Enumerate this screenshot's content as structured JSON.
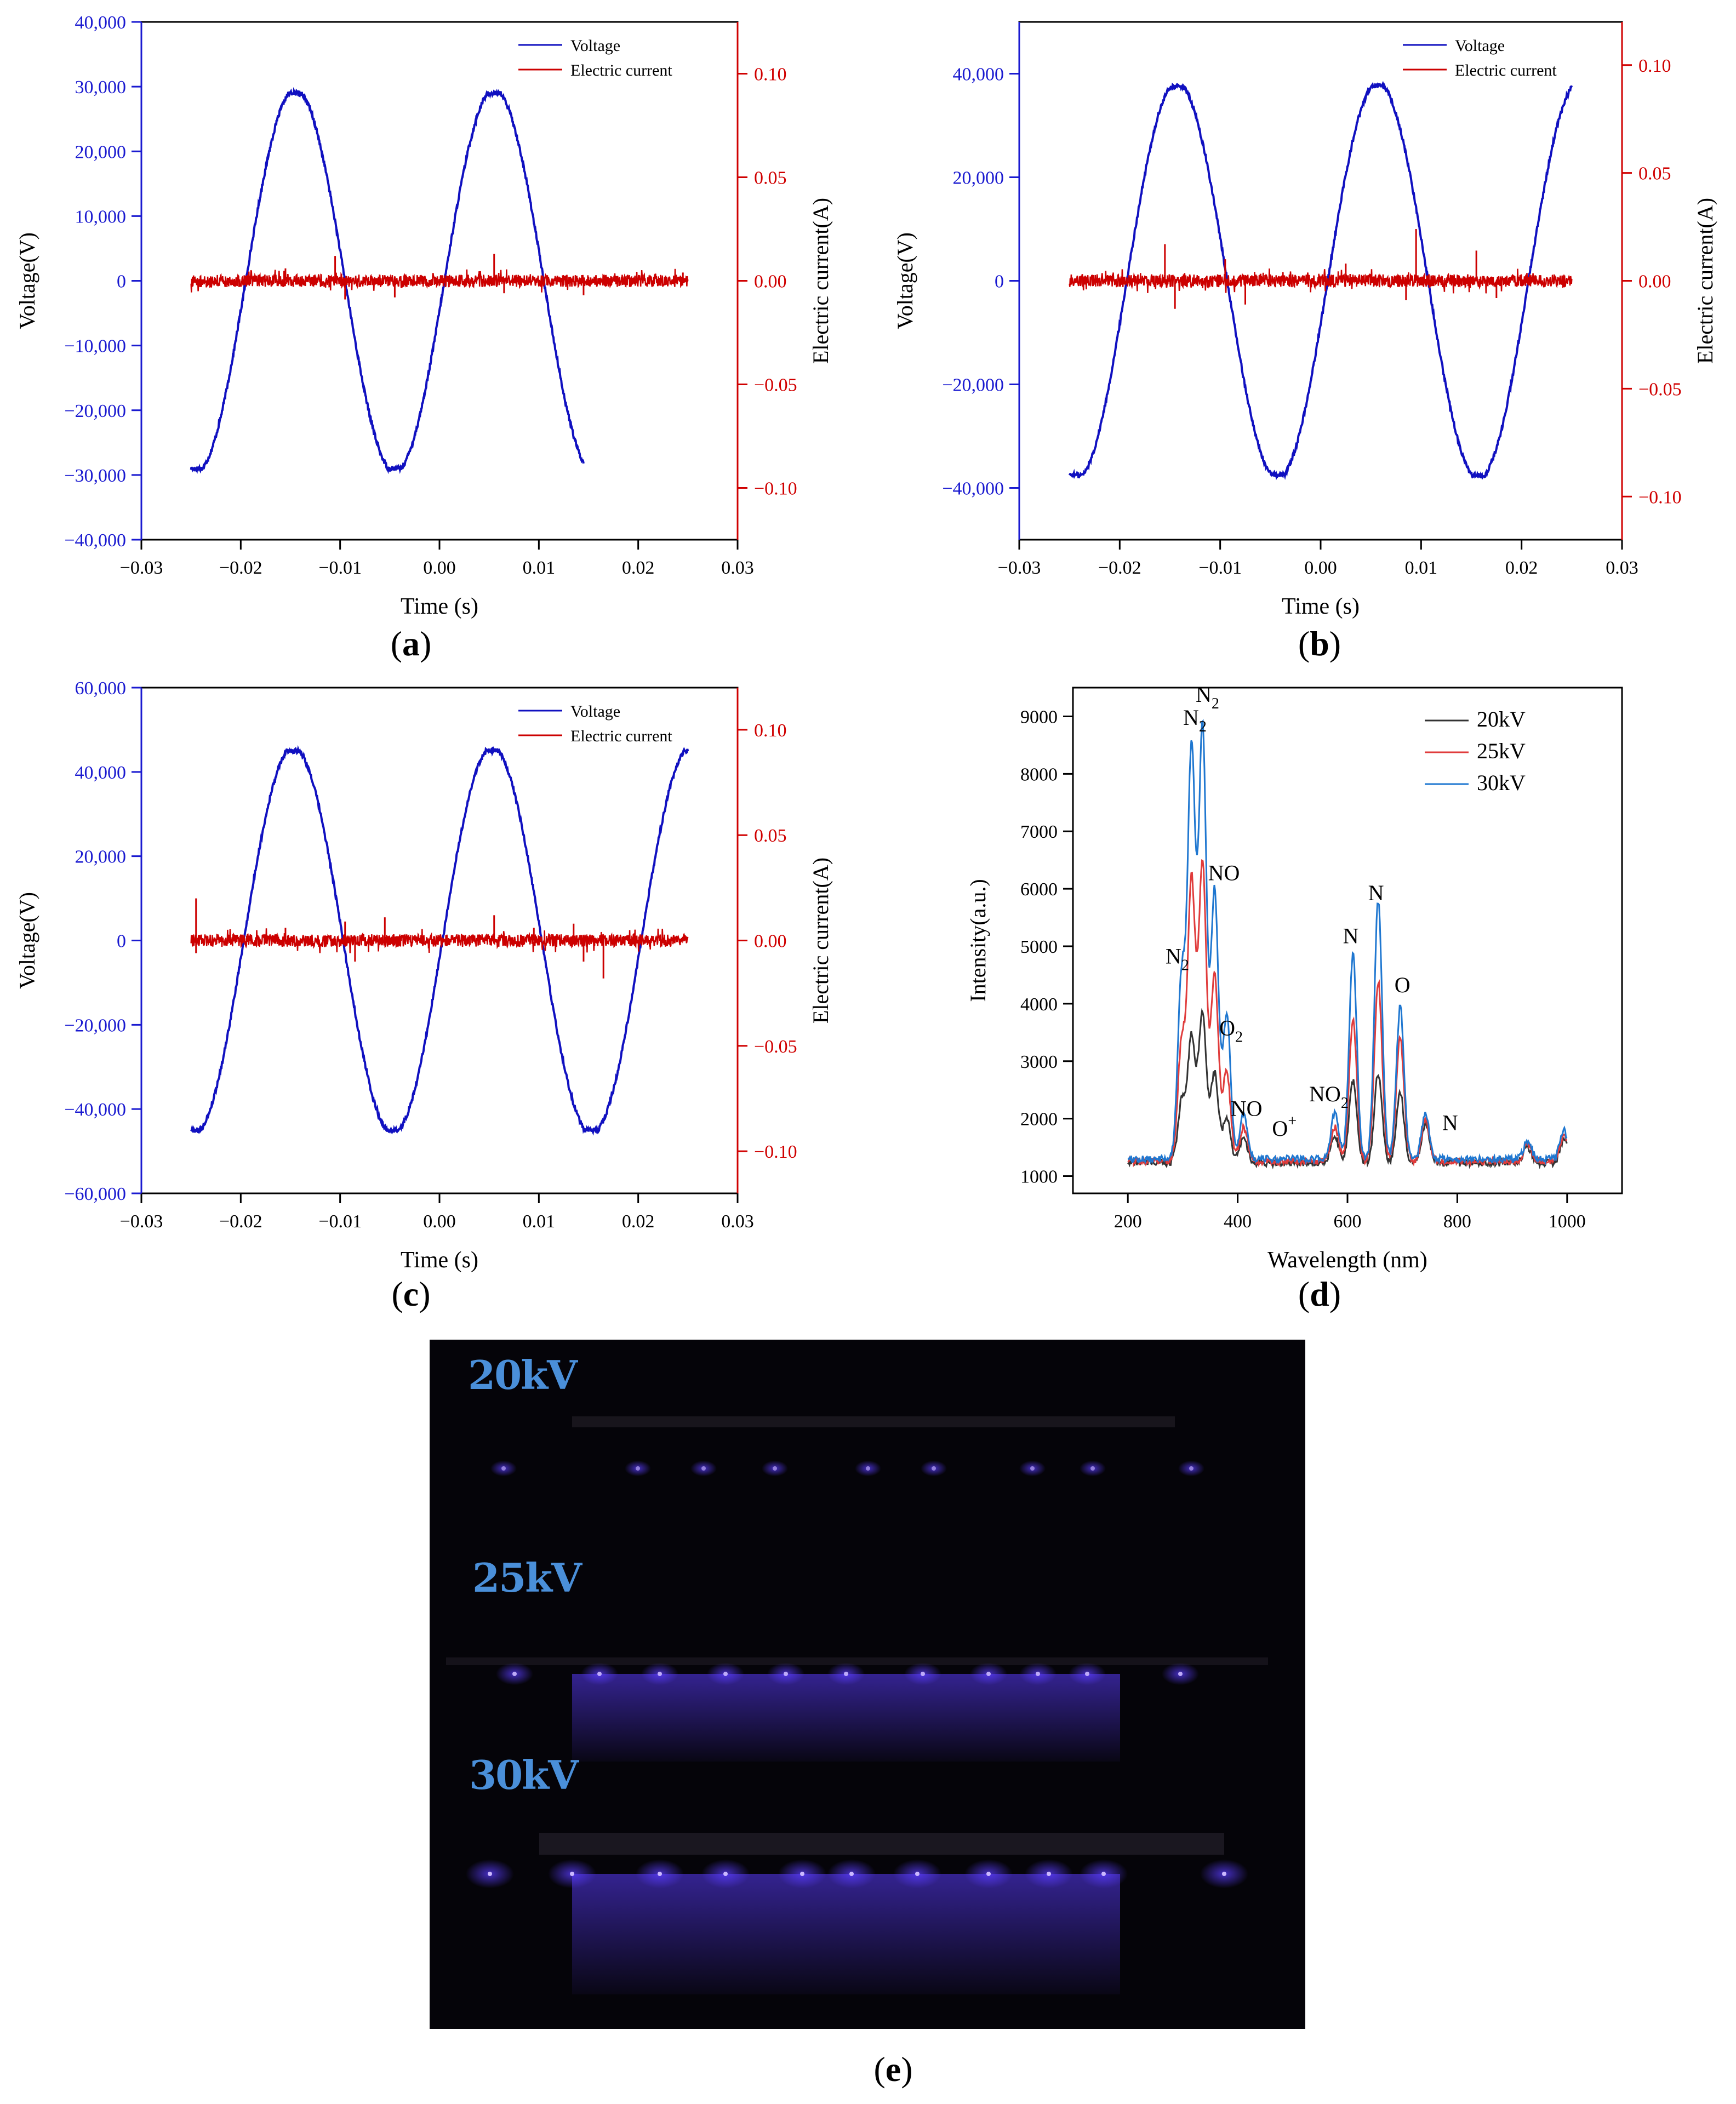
{
  "panel_labels": {
    "a": "a",
    "b": "b",
    "c": "c",
    "d": "d",
    "e": "e"
  },
  "photo": {
    "labels": [
      "20kV",
      "25kV",
      "30kV"
    ],
    "glow_color": "#5a3cff"
  },
  "chart_data": [
    {
      "id": "a",
      "type": "line",
      "xlabel": "Time (s)",
      "ylabel": "Voltage(V)",
      "ylabel_right": "Electric current(A)",
      "xlim": [
        -0.03,
        0.03
      ],
      "ylim": [
        -40000,
        40000
      ],
      "ylim_right": [
        -0.125,
        0.125
      ],
      "x_ticks": [
        "−0.03",
        "−0.02",
        "−0.01",
        "0.00",
        "0.01",
        "0.02",
        "0.03"
      ],
      "y_ticks": [
        "−40,000",
        "−30,000",
        "−20,000",
        "−10,000",
        "0",
        "10,000",
        "20,000",
        "30,000",
        "40,000"
      ],
      "y_right_ticks": [
        "−0.10",
        "−0.05",
        "0.00",
        "0.05",
        "0.10"
      ],
      "legend": {
        "position": "top-right",
        "entries": [
          "Voltage",
          "Electric current"
        ]
      },
      "series": [
        {
          "name": "Voltage",
          "color": "#1010c0",
          "type": "sine",
          "amplitude": 29000,
          "period": 0.02,
          "peak_x": -0.0145,
          "x_range": [
            -0.025,
            0.0145
          ]
        },
        {
          "name": "Electric current",
          "color": "#cc0000",
          "type": "noise",
          "baseline": 0,
          "x_range": [
            -0.025,
            0.025
          ],
          "spikes": [
            [
              -0.0105,
              0.012
            ],
            [
              -0.0095,
              -0.009
            ],
            [
              -0.0045,
              -0.008
            ],
            [
              0.0055,
              0.013
            ],
            [
              0.0065,
              -0.006
            ],
            [
              0.0145,
              -0.007
            ],
            [
              -0.0155,
              0.006
            ],
            [
              0.0245,
              0.004
            ]
          ]
        }
      ]
    },
    {
      "id": "b",
      "type": "line",
      "xlabel": "Time (s)",
      "ylabel": "Voltage(V)",
      "ylabel_right": "Electric current(A)",
      "xlim": [
        -0.03,
        0.03
      ],
      "ylim": [
        -50000,
        50000
      ],
      "ylim_right": [
        -0.12,
        0.12
      ],
      "x_ticks": [
        "−0.03",
        "−0.02",
        "−0.01",
        "0.00",
        "0.01",
        "0.02",
        "0.03"
      ],
      "y_ticks": [
        "−40,000",
        "−20,000",
        "0",
        "20,000",
        "40,000"
      ],
      "y_right_ticks": [
        "−0.10",
        "−0.05",
        "0.00",
        "0.05",
        "0.10"
      ],
      "legend": {
        "position": "top-right",
        "entries": [
          "Voltage",
          "Electric current"
        ]
      },
      "series": [
        {
          "name": "Voltage",
          "color": "#1010c0",
          "type": "sine",
          "amplitude": 37500,
          "period": 0.02,
          "peak_x": -0.0143,
          "x_range": [
            -0.025,
            0.025
          ]
        },
        {
          "name": "Electric current",
          "color": "#cc0000",
          "type": "noise",
          "baseline": 0,
          "x_range": [
            -0.025,
            0.025
          ],
          "spikes": [
            [
              -0.0155,
              0.017
            ],
            [
              -0.0145,
              -0.013
            ],
            [
              -0.0095,
              0.01
            ],
            [
              -0.0075,
              -0.011
            ],
            [
              0.0095,
              0.024
            ],
            [
              0.0085,
              -0.009
            ],
            [
              0.0155,
              0.014
            ],
            [
              0.0175,
              -0.008
            ],
            [
              0.0025,
              0.008
            ]
          ]
        }
      ]
    },
    {
      "id": "c",
      "type": "line",
      "xlabel": "Time (s)",
      "ylabel": "Voltage(V)",
      "ylabel_right": "Electric current(A)",
      "xlim": [
        -0.03,
        0.03
      ],
      "ylim": [
        -60000,
        60000
      ],
      "ylim_right": [
        -0.12,
        0.12
      ],
      "x_ticks": [
        "−0.03",
        "−0.02",
        "−0.01",
        "0.00",
        "0.01",
        "0.02",
        "0.03"
      ],
      "y_ticks": [
        "−60,000",
        "−40,000",
        "−20,000",
        "0",
        "20,000",
        "40,000",
        "60,000"
      ],
      "y_right_ticks": [
        "−0.10",
        "−0.05",
        "0.00",
        "0.05",
        "0.10"
      ],
      "legend": {
        "position": "top-right",
        "entries": [
          "Voltage",
          "Electric current"
        ]
      },
      "series": [
        {
          "name": "Voltage",
          "color": "#1010c0",
          "type": "sine",
          "amplitude": 45000,
          "period": 0.02,
          "peak_x": -0.0147,
          "x_range": [
            -0.025,
            0.025
          ]
        },
        {
          "name": "Electric current",
          "color": "#cc0000",
          "type": "noise",
          "baseline": 0,
          "x_range": [
            -0.025,
            0.025
          ],
          "spikes": [
            [
              -0.0245,
              0.02
            ],
            [
              -0.0245,
              -0.006
            ],
            [
              -0.0095,
              0.009
            ],
            [
              -0.0085,
              -0.01
            ],
            [
              -0.0055,
              0.011
            ],
            [
              0.0055,
              0.012
            ],
            [
              0.0095,
              0.006
            ],
            [
              0.0135,
              0.008
            ],
            [
              0.0145,
              -0.01
            ],
            [
              0.0165,
              -0.018
            ],
            [
              -0.0155,
              0.006
            ]
          ]
        }
      ]
    },
    {
      "id": "d",
      "type": "line",
      "xlabel": "Wavelength (nm)",
      "ylabel": "Intensity(a.u.)",
      "xlim": [
        100,
        1100
      ],
      "ylim": [
        700,
        9500
      ],
      "x_ticks": [
        "200",
        "400",
        "600",
        "800",
        "1000"
      ],
      "x_tick_values": [
        200,
        400,
        600,
        800,
        1000
      ],
      "y_ticks": [
        "1000",
        "2000",
        "3000",
        "4000",
        "5000",
        "6000",
        "7000",
        "8000",
        "9000"
      ],
      "y_tick_values": [
        1000,
        2000,
        3000,
        4000,
        5000,
        6000,
        7000,
        8000,
        9000
      ],
      "legend": {
        "position": "top-right",
        "entries": [
          "20kV",
          "25kV",
          "30kV"
        ]
      },
      "series": [
        {
          "name": "20kV",
          "color": "#333333",
          "baseline": 1230,
          "peaks": [
            [
              298,
              2300
            ],
            [
              316,
              3400
            ],
            [
              336,
              3850
            ],
            [
              358,
              2800
            ],
            [
              380,
              2000
            ],
            [
              411,
              1650
            ],
            [
              577,
              1700
            ],
            [
              610,
              2650
            ],
            [
              656,
              2800
            ],
            [
              696,
              2450
            ],
            [
              742,
              1900
            ],
            [
              928,
              1500
            ],
            [
              994,
              1620
            ]
          ]
        },
        {
          "name": "25kV",
          "color": "#e03c3c",
          "baseline": 1260,
          "peaks": [
            [
              298,
              3300
            ],
            [
              316,
              6100
            ],
            [
              336,
              6400
            ],
            [
              358,
              4500
            ],
            [
              380,
              2800
            ],
            [
              411,
              1850
            ],
            [
              577,
              1850
            ],
            [
              610,
              3700
            ],
            [
              656,
              4400
            ],
            [
              696,
              3400
            ],
            [
              742,
              2000
            ],
            [
              928,
              1550
            ],
            [
              994,
              1700
            ]
          ]
        },
        {
          "name": "30kV",
          "color": "#1f77d0",
          "baseline": 1300,
          "peaks": [
            [
              298,
              4450
            ],
            [
              316,
              8350
            ],
            [
              336,
              8750
            ],
            [
              358,
              5950
            ],
            [
              380,
              3800
            ],
            [
              411,
              2100
            ],
            [
              577,
              2100
            ],
            [
              610,
              4850
            ],
            [
              656,
              5800
            ],
            [
              696,
              3950
            ],
            [
              742,
              2100
            ],
            [
              928,
              1600
            ],
            [
              994,
              1800
            ]
          ]
        }
      ],
      "annotations": [
        {
          "text": "N",
          "sub": "2",
          "x": 322,
          "y": 8850
        },
        {
          "text": "N",
          "sub": "2",
          "x": 345,
          "y": 9250
        },
        {
          "text": "NO",
          "sub": "",
          "x": 375,
          "y": 6150
        },
        {
          "text": "N",
          "sub": "2",
          "x": 290,
          "y": 4700
        },
        {
          "text": "O",
          "sub": "2",
          "x": 388,
          "y": 3450
        },
        {
          "text": "NO",
          "sub": "",
          "x": 416,
          "y": 2050
        },
        {
          "text": "O",
          "sup": "+",
          "x": 485,
          "y": 1700
        },
        {
          "text": "NO",
          "sub": "2",
          "x": 566,
          "y": 2300
        },
        {
          "text": "N",
          "sub": "",
          "x": 606,
          "y": 5050
        },
        {
          "text": "N",
          "sub": "",
          "x": 652,
          "y": 5800
        },
        {
          "text": "O",
          "sub": "",
          "x": 700,
          "y": 4200
        },
        {
          "text": "N",
          "sub": "",
          "x": 787,
          "y": 1800
        }
      ]
    }
  ]
}
